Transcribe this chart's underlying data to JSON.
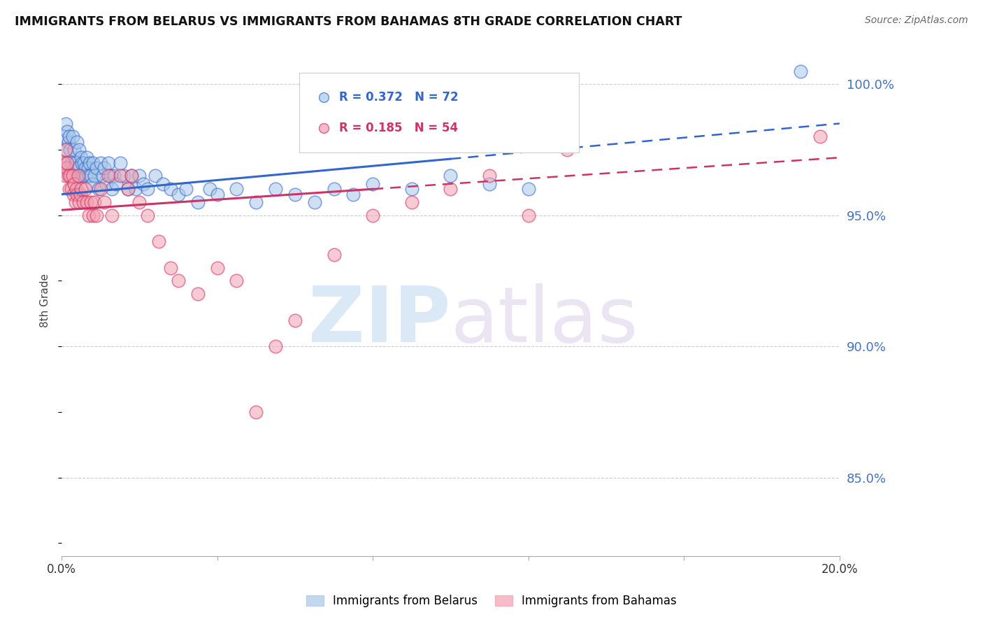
{
  "title": "IMMIGRANTS FROM BELARUS VS IMMIGRANTS FROM BAHAMAS 8TH GRADE CORRELATION CHART",
  "source": "Source: ZipAtlas.com",
  "ylabel": "8th Grade",
  "ylabel_right_ticks": [
    85.0,
    90.0,
    95.0,
    100.0
  ],
  "x_min": 0.0,
  "x_max": 20.0,
  "y_min": 82.0,
  "y_max": 101.5,
  "color_belarus": "#a8c8e8",
  "color_bahamas": "#f4a0b0",
  "color_line_belarus": "#3366cc",
  "color_line_bahamas": "#cc3366",
  "color_right_axis": "#4472c4",
  "belarus_x": [
    0.05,
    0.08,
    0.1,
    0.12,
    0.15,
    0.18,
    0.2,
    0.22,
    0.25,
    0.28,
    0.3,
    0.32,
    0.35,
    0.38,
    0.4,
    0.42,
    0.45,
    0.48,
    0.5,
    0.52,
    0.55,
    0.58,
    0.6,
    0.62,
    0.65,
    0.68,
    0.7,
    0.72,
    0.75,
    0.78,
    0.8,
    0.85,
    0.9,
    0.95,
    1.0,
    1.05,
    1.1,
    1.15,
    1.2,
    1.25,
    1.3,
    1.35,
    1.4,
    1.5,
    1.6,
    1.7,
    1.8,
    1.9,
    2.0,
    2.1,
    2.2,
    2.4,
    2.6,
    2.8,
    3.0,
    3.2,
    3.5,
    3.8,
    4.0,
    4.5,
    5.0,
    5.5,
    6.0,
    6.5,
    7.0,
    7.5,
    8.0,
    9.0,
    10.0,
    11.0,
    12.0,
    19.0
  ],
  "belarus_y": [
    98.0,
    97.5,
    98.5,
    97.0,
    98.2,
    97.8,
    98.0,
    97.5,
    97.0,
    98.0,
    96.8,
    97.5,
    97.0,
    96.5,
    97.8,
    96.8,
    97.5,
    96.5,
    97.2,
    97.0,
    96.5,
    97.0,
    96.8,
    96.5,
    97.2,
    96.8,
    96.5,
    97.0,
    96.5,
    96.2,
    97.0,
    96.5,
    96.8,
    96.0,
    97.0,
    96.5,
    96.8,
    96.2,
    97.0,
    96.5,
    96.0,
    96.5,
    96.2,
    97.0,
    96.5,
    96.0,
    96.5,
    96.0,
    96.5,
    96.2,
    96.0,
    96.5,
    96.2,
    96.0,
    95.8,
    96.0,
    95.5,
    96.0,
    95.8,
    96.0,
    95.5,
    96.0,
    95.8,
    95.5,
    96.0,
    95.8,
    96.2,
    96.0,
    96.5,
    96.2,
    96.0,
    100.5
  ],
  "bahamas_x": [
    0.05,
    0.08,
    0.1,
    0.12,
    0.15,
    0.18,
    0.2,
    0.22,
    0.25,
    0.28,
    0.3,
    0.32,
    0.35,
    0.38,
    0.4,
    0.42,
    0.45,
    0.48,
    0.5,
    0.55,
    0.6,
    0.65,
    0.7,
    0.75,
    0.8,
    0.85,
    0.9,
    1.0,
    1.1,
    1.2,
    1.3,
    1.5,
    1.7,
    1.8,
    2.0,
    2.2,
    2.5,
    2.8,
    3.0,
    3.5,
    4.0,
    4.5,
    5.0,
    5.5,
    6.0,
    7.0,
    8.0,
    9.0,
    10.0,
    11.0,
    12.0,
    13.0,
    19.5
  ],
  "bahamas_y": [
    97.0,
    96.5,
    97.5,
    96.8,
    97.0,
    96.5,
    96.0,
    96.5,
    96.0,
    96.5,
    95.8,
    96.2,
    95.5,
    96.0,
    95.8,
    96.5,
    95.5,
    95.8,
    96.0,
    95.5,
    96.0,
    95.5,
    95.0,
    95.5,
    95.0,
    95.5,
    95.0,
    96.0,
    95.5,
    96.5,
    95.0,
    96.5,
    96.0,
    96.5,
    95.5,
    95.0,
    94.0,
    93.0,
    92.5,
    92.0,
    93.0,
    92.5,
    87.5,
    90.0,
    91.0,
    93.5,
    95.0,
    95.5,
    96.0,
    96.5,
    95.0,
    97.5,
    98.0
  ],
  "trend_bel_x0": 0.0,
  "trend_bel_y0": 95.8,
  "trend_bel_x1": 20.0,
  "trend_bel_y1": 98.5,
  "trend_bel_solid_end": 10.0,
  "trend_bah_x0": 0.0,
  "trend_bah_y0": 95.2,
  "trend_bah_x1": 20.0,
  "trend_bah_y1": 97.2,
  "trend_bah_solid_end": 8.0
}
